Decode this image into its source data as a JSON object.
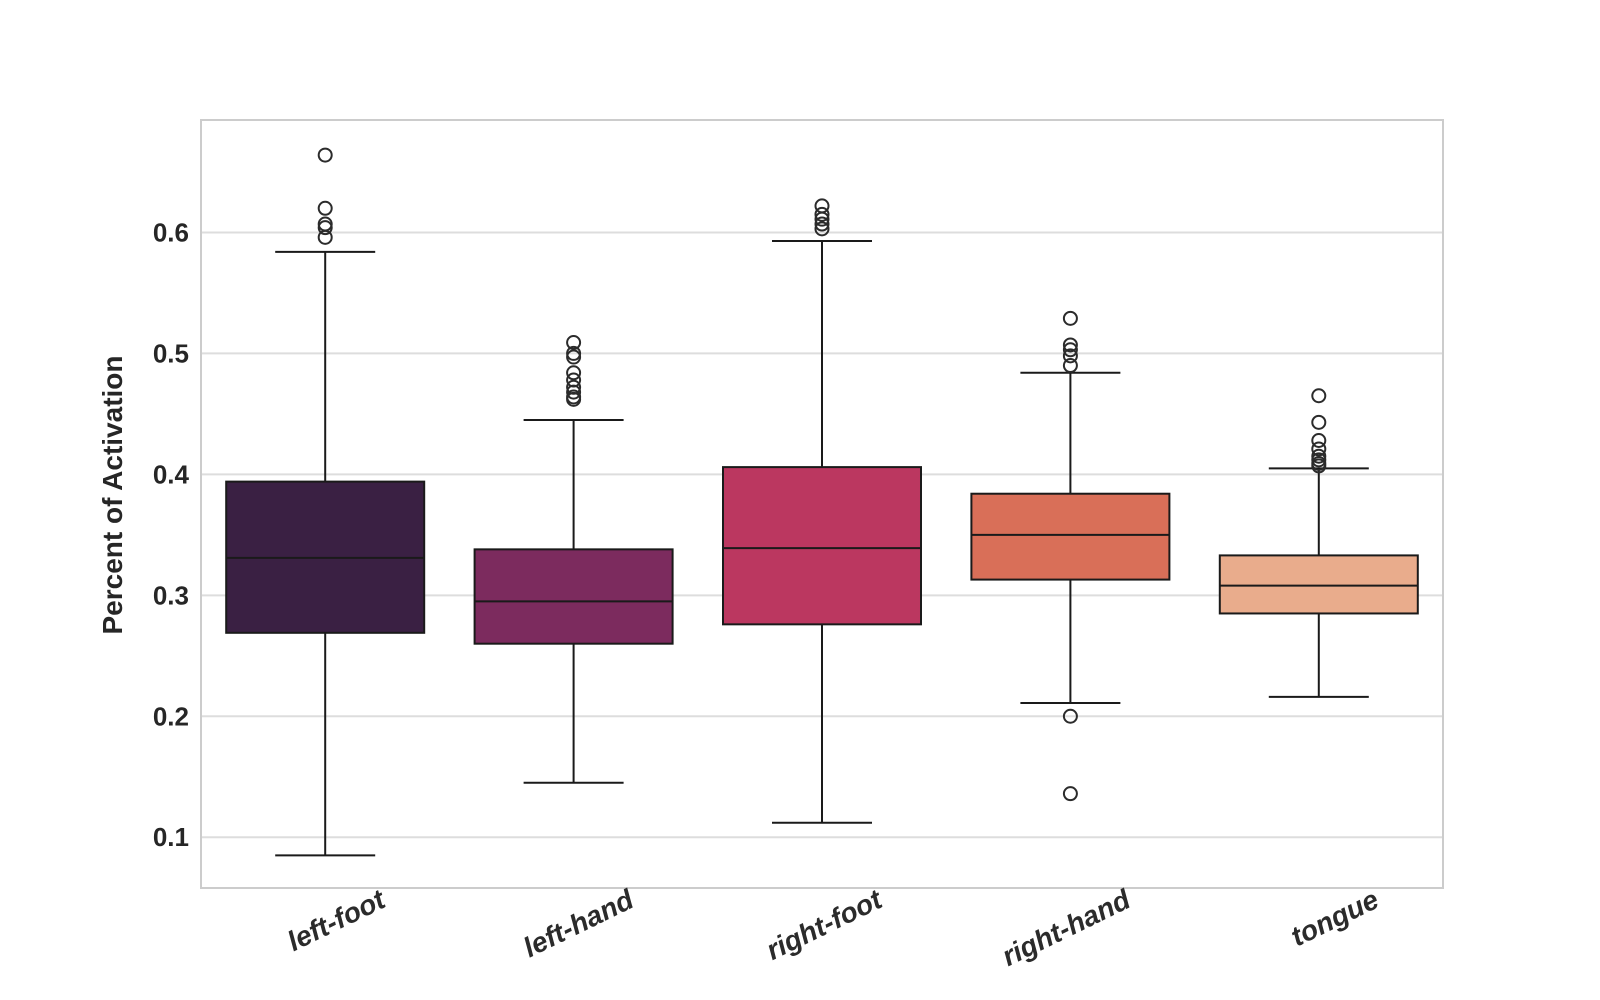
{
  "chart_data": {
    "type": "box",
    "title": "",
    "ylabel": "Percent of Activation",
    "xlabel": "",
    "ylim": [
      0.058,
      0.693
    ],
    "yticks": [
      "0.1",
      "0.2",
      "0.3",
      "0.4",
      "0.5",
      "0.6"
    ],
    "grid": "horizontal",
    "legend": "none",
    "categories": [
      "left-foot",
      "left-hand",
      "right-foot",
      "right-hand",
      "tongue"
    ],
    "series": [
      {
        "label": "left-foot",
        "color": "#3a2043",
        "whisker_low": 0.085,
        "q1": 0.269,
        "median": 0.331,
        "q3": 0.394,
        "whisker_high": 0.584,
        "outliers": [
          0.596,
          0.604,
          0.607,
          0.62,
          0.664
        ]
      },
      {
        "label": "left-hand",
        "color": "#7c2b5e",
        "whisker_low": 0.145,
        "q1": 0.26,
        "median": 0.295,
        "q3": 0.338,
        "whisker_high": 0.445,
        "outliers": [
          0.462,
          0.464,
          0.468,
          0.472,
          0.478,
          0.484,
          0.497,
          0.5,
          0.509
        ]
      },
      {
        "label": "right-foot",
        "color": "#bb3760",
        "whisker_low": 0.112,
        "q1": 0.276,
        "median": 0.339,
        "q3": 0.406,
        "whisker_high": 0.593,
        "outliers": [
          0.603,
          0.607,
          0.611,
          0.615,
          0.622
        ]
      },
      {
        "label": "right-hand",
        "color": "#d96f58",
        "whisker_low": 0.211,
        "q1": 0.313,
        "median": 0.35,
        "q3": 0.384,
        "whisker_high": 0.484,
        "outliers": [
          0.136,
          0.2,
          0.49,
          0.498,
          0.503,
          0.507,
          0.529
        ]
      },
      {
        "label": "tongue",
        "color": "#e9ac8c",
        "whisker_low": 0.216,
        "q1": 0.285,
        "median": 0.308,
        "q3": 0.333,
        "whisker_high": 0.405,
        "outliers": [
          0.407,
          0.409,
          0.412,
          0.415,
          0.421,
          0.428,
          0.443,
          0.465
        ]
      }
    ],
    "styles": {
      "background": "#ffffff",
      "grid_color": "#dddddd",
      "frame_color": "#cccccc",
      "box_edge_color": "#1a1a1a",
      "outlier_edge_color": "#2b2b2b",
      "text_color": "#262626"
    }
  }
}
